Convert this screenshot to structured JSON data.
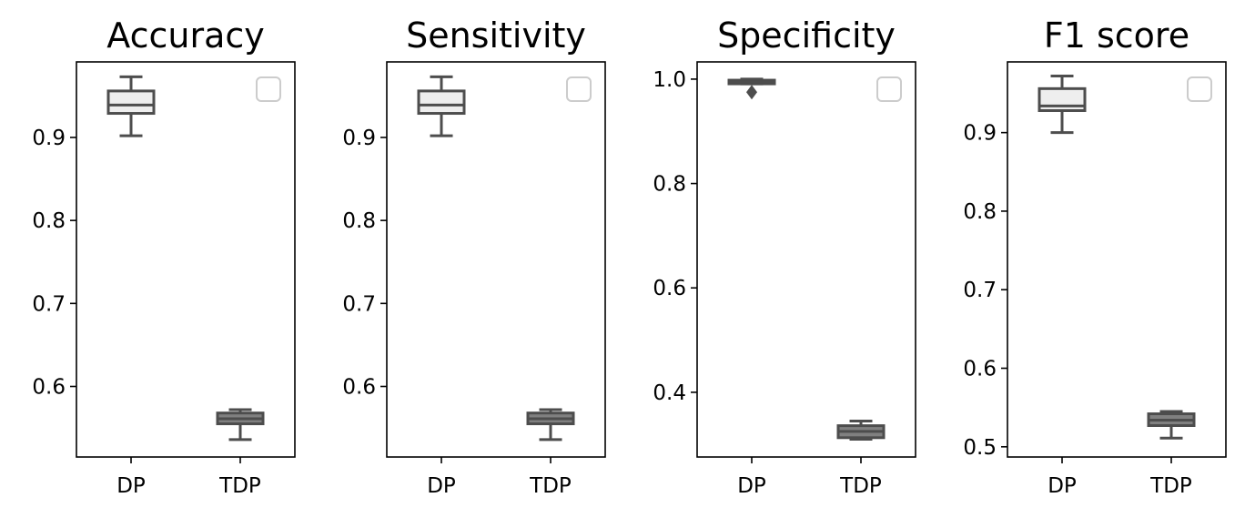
{
  "chart_data": [
    {
      "type": "box",
      "title": "Accuracy",
      "categories": [
        "DP",
        "TDP"
      ],
      "ylim": [
        0.515,
        0.991
      ],
      "yticks": [
        0.6,
        0.7,
        0.8,
        0.9
      ],
      "ytick_labels": [
        "0.6",
        "0.7",
        "0.8",
        "0.9"
      ],
      "boxes": [
        {
          "category": "DP",
          "whisker_low": 0.902,
          "q1": 0.929,
          "median": 0.939,
          "q3": 0.956,
          "whisker_high": 0.973,
          "fliers": [],
          "fill": "#eeeeee"
        },
        {
          "category": "TDP",
          "whisker_low": 0.536,
          "q1": 0.555,
          "median": 0.561,
          "q3": 0.568,
          "whisker_high": 0.572,
          "fliers": [],
          "fill": "#808080"
        }
      ],
      "legend": {
        "placement": "upper-right",
        "entries": []
      },
      "grid": false
    },
    {
      "type": "box",
      "title": "Sensitivity",
      "categories": [
        "DP",
        "TDP"
      ],
      "ylim": [
        0.515,
        0.991
      ],
      "yticks": [
        0.6,
        0.7,
        0.8,
        0.9
      ],
      "ytick_labels": [
        "0.6",
        "0.7",
        "0.8",
        "0.9"
      ],
      "boxes": [
        {
          "category": "DP",
          "whisker_low": 0.902,
          "q1": 0.929,
          "median": 0.939,
          "q3": 0.956,
          "whisker_high": 0.973,
          "fliers": [],
          "fill": "#eeeeee"
        },
        {
          "category": "TDP",
          "whisker_low": 0.536,
          "q1": 0.555,
          "median": 0.561,
          "q3": 0.568,
          "whisker_high": 0.572,
          "fliers": [],
          "fill": "#808080"
        }
      ],
      "legend": {
        "placement": "upper-right",
        "entries": []
      },
      "grid": false
    },
    {
      "type": "box",
      "title": "Specificity",
      "categories": [
        "DP",
        "TDP"
      ],
      "ylim": [
        0.276,
        1.033
      ],
      "yticks": [
        0.4,
        0.6,
        0.8,
        1.0
      ],
      "ytick_labels": [
        "0.4",
        "0.6",
        "0.8",
        "1.0"
      ],
      "boxes": [
        {
          "category": "DP",
          "whisker_low": 0.991,
          "q1": 0.991,
          "median": 0.995,
          "q3": 0.998,
          "whisker_high": 1.0,
          "fliers": [
            0.975
          ],
          "fill": "#eeeeee"
        },
        {
          "category": "TDP",
          "whisker_low": 0.31,
          "q1": 0.313,
          "median": 0.325,
          "q3": 0.336,
          "whisker_high": 0.345,
          "fliers": [],
          "fill": "#808080"
        }
      ],
      "legend": {
        "placement": "upper-right",
        "entries": []
      },
      "grid": false
    },
    {
      "type": "box",
      "title": "F1 score",
      "categories": [
        "DP",
        "TDP"
      ],
      "ylim": [
        0.487,
        0.99
      ],
      "yticks": [
        0.5,
        0.6,
        0.7,
        0.8,
        0.9
      ],
      "ytick_labels": [
        "0.5",
        "0.6",
        "0.7",
        "0.8",
        "0.9"
      ],
      "boxes": [
        {
          "category": "DP",
          "whisker_low": 0.9,
          "q1": 0.928,
          "median": 0.934,
          "q3": 0.956,
          "whisker_high": 0.972,
          "fliers": [],
          "fill": "#eeeeee"
        },
        {
          "category": "TDP",
          "whisker_low": 0.511,
          "q1": 0.527,
          "median": 0.534,
          "q3": 0.542,
          "whisker_high": 0.545,
          "fliers": [],
          "fill": "#808080"
        }
      ],
      "legend": {
        "placement": "upper-right",
        "entries": []
      },
      "grid": false
    }
  ],
  "style": {
    "axis_color": "#000000",
    "box_line_color": "#4d4d4d",
    "legend_frame_color": "#cccccc"
  }
}
